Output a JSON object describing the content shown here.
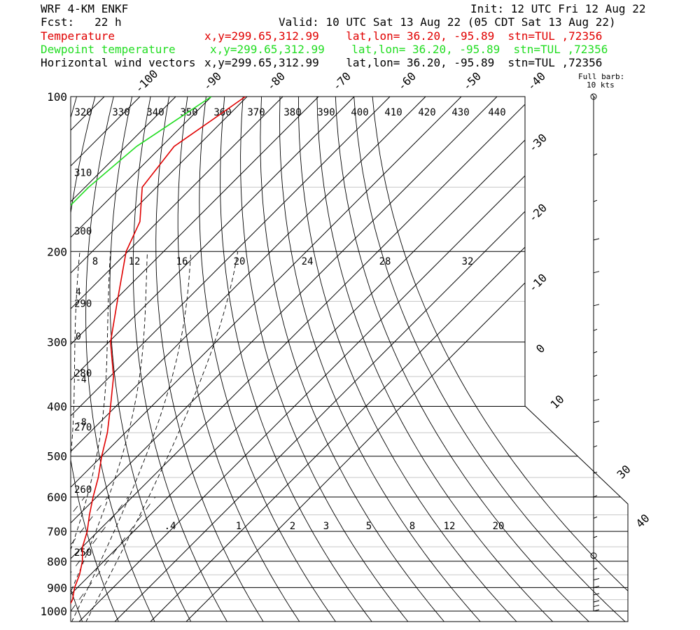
{
  "header": {
    "model": "WRF 4-KM ENKF",
    "forecast": "Fcst:   22 h",
    "init": "Init: 12 UTC Fri 12 Aug 22",
    "valid": "Valid: 10 UTC Sat 13 Aug 22 (05 CDT Sat 13 Aug 22)",
    "lines": [
      {
        "label": "Temperature",
        "loc": "x,y=299.65,312.99    lat,lon= 36.20, -95.89  stn=TUL ,72356"
      },
      {
        "label": "Dewpoint temperature",
        "loc": "x,y=299.65,312.99    lat,lon= 36.20, -95.89  stn=TUL ,72356"
      },
      {
        "label": "Horizontal wind vectors",
        "loc": "x,y=299.65,312.99    lat,lon= 36.20, -95.89  stn=TUL ,72356"
      }
    ]
  },
  "barb_legend": {
    "line1": "Full barb:",
    "line2": "10 kts"
  },
  "colors": {
    "temperature": "#e00000",
    "dewpoint": "#22dd22",
    "text": "#000000"
  },
  "chart_data": {
    "type": "line",
    "diagram": "skew-T log-p",
    "y_axis": {
      "quantity": "pressure",
      "scale": "log",
      "range": [
        1000,
        100
      ],
      "ticks": [
        100,
        200,
        300,
        400,
        500,
        600,
        700,
        800,
        900,
        1000
      ]
    },
    "isotherm_labels": [
      -100,
      -90,
      -80,
      -70,
      -60,
      -50,
      -40,
      -30,
      -20,
      -10,
      0,
      10,
      30,
      40
    ],
    "dry_adiabat_labels": [
      {
        "value": 320,
        "p": 123
      },
      {
        "value": 330,
        "p": 123
      },
      {
        "value": 340,
        "p": 123
      },
      {
        "value": 350,
        "p": 123
      },
      {
        "value": 360,
        "p": 123
      },
      {
        "value": 370,
        "p": 123
      },
      {
        "value": 380,
        "p": 123
      },
      {
        "value": 390,
        "p": 123
      },
      {
        "value": 400,
        "p": 123
      },
      {
        "value": 410,
        "p": 123
      },
      {
        "value": 420,
        "p": 123
      },
      {
        "value": 430,
        "p": 123
      },
      {
        "value": 440,
        "p": 123
      },
      {
        "value": 310,
        "p": 141
      },
      {
        "value": 300,
        "p": 183
      },
      {
        "value": 290,
        "p": 253
      },
      {
        "value": 280,
        "p": 346
      },
      {
        "value": 270,
        "p": 440
      },
      {
        "value": 260,
        "p": 582
      },
      {
        "value": 250,
        "p": 771
      }
    ],
    "moist_adiabat_labels": [
      {
        "value": 8,
        "x": 136
      },
      {
        "value": 12,
        "x": 192
      },
      {
        "value": 16,
        "x": 260
      },
      {
        "value": 20,
        "x": 342
      },
      {
        "value": 24,
        "x": 439
      },
      {
        "value": 28,
        "x": 550
      },
      {
        "value": 32,
        "x": 668
      }
    ],
    "moist_adiabat_side_labels": [
      {
        "value": "4",
        "p": 240
      },
      {
        "value": "0",
        "p": 293
      },
      {
        "value": "-4",
        "p": 355
      },
      {
        "value": "-8",
        "p": 430
      }
    ],
    "mixing_ratio_labels": [
      ".4",
      "1",
      "2",
      "3",
      "5",
      "8",
      "12",
      "20"
    ],
    "series": [
      {
        "name": "Temperature",
        "points": [
          [
            100,
            -70.5
          ],
          [
            110,
            -73
          ],
          [
            125,
            -76.5
          ],
          [
            150,
            -74
          ],
          [
            175,
            -65
          ],
          [
            200,
            -60.5
          ],
          [
            250,
            -49
          ],
          [
            300,
            -39.5
          ],
          [
            350,
            -29
          ],
          [
            400,
            -21.5
          ],
          [
            450,
            -15
          ],
          [
            500,
            -10
          ],
          [
            550,
            -5
          ],
          [
            600,
            -1
          ],
          [
            650,
            3
          ],
          [
            700,
            7
          ],
          [
            750,
            10
          ],
          [
            800,
            14
          ],
          [
            850,
            17
          ],
          [
            900,
            19.2
          ],
          [
            950,
            22
          ],
          [
            975,
            22.8
          ],
          [
            990,
            20
          ],
          [
            1000,
            18.4
          ]
        ]
      },
      {
        "name": "Dewpoint temperature",
        "points": [
          [
            100,
            -80
          ],
          [
            110,
            -83
          ],
          [
            125,
            -87
          ],
          [
            150,
            -89
          ],
          [
            175,
            -89
          ],
          [
            200,
            -82
          ],
          [
            250,
            -70
          ],
          [
            300,
            -61
          ],
          [
            350,
            -57
          ],
          [
            400,
            -54
          ],
          [
            450,
            -44
          ],
          [
            500,
            -34
          ],
          [
            550,
            -22
          ],
          [
            600,
            -14
          ],
          [
            650,
            -8
          ],
          [
            700,
            -6
          ],
          [
            750,
            -6
          ],
          [
            775,
            -3
          ],
          [
            800,
            2
          ],
          [
            850,
            10
          ],
          [
            900,
            14
          ],
          [
            950,
            14.5
          ],
          [
            990,
            14.3
          ]
        ]
      }
    ],
    "wind_barbs_kts": [
      {
        "p": 100,
        "speed": 0
      },
      {
        "p": 130,
        "speed": 5
      },
      {
        "p": 160,
        "speed": 5
      },
      {
        "p": 190,
        "speed": 10
      },
      {
        "p": 220,
        "speed": 10
      },
      {
        "p": 255,
        "speed": 10
      },
      {
        "p": 285,
        "speed": 5
      },
      {
        "p": 315,
        "speed": 5
      },
      {
        "p": 350,
        "speed": 5
      },
      {
        "p": 390,
        "speed": 10
      },
      {
        "p": 430,
        "speed": 10
      },
      {
        "p": 480,
        "speed": 5
      },
      {
        "p": 540,
        "speed": 5
      },
      {
        "p": 600,
        "speed": 5
      },
      {
        "p": 660,
        "speed": 5
      },
      {
        "p": 720,
        "speed": 5
      },
      {
        "p": 780,
        "speed": 0
      },
      {
        "p": 830,
        "speed": 5
      },
      {
        "p": 870,
        "speed": 10
      },
      {
        "p": 900,
        "speed": 10
      },
      {
        "p": 930,
        "speed": 10
      },
      {
        "p": 960,
        "speed": 10
      },
      {
        "p": 980,
        "speed": 10
      },
      {
        "p": 1000,
        "speed": 10
      }
    ]
  }
}
